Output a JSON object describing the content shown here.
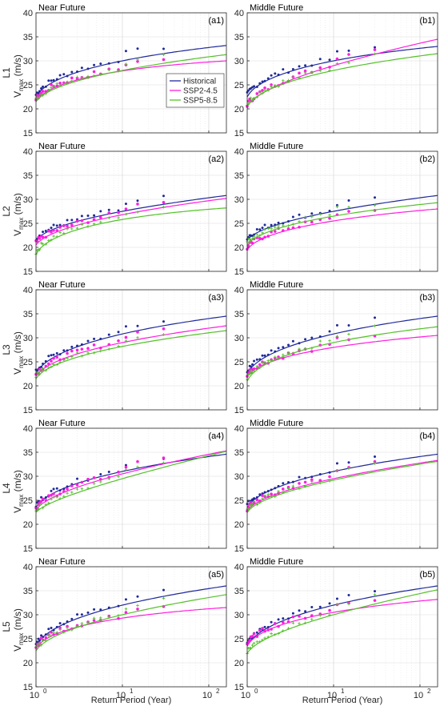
{
  "colors": {
    "historical": "#1f2a9a",
    "ssp245": "#ff1ee0",
    "ssp585": "#54c12a"
  },
  "xlabel": "Return Period (Year)",
  "ylabel_main": "V",
  "ylabel_sub": "max",
  "ylabel_unit": "(m/s)",
  "xtick_labels": {
    "1": "10",
    "10": "10",
    "100": "10"
  },
  "xtick_exponents": {
    "1": "0",
    "10": "1",
    "100": "2"
  },
  "legend": [
    {
      "key": "historical",
      "label": "Historical"
    },
    {
      "key": "ssp245",
      "label": "SSP2-4.5"
    },
    {
      "key": "ssp585",
      "label": "SSP5-8.5"
    }
  ],
  "chart_data": [
    {
      "type": "line",
      "row": "L1",
      "title": "Near Future",
      "tag": "(a1)",
      "xlim": [
        1,
        160
      ],
      "ylim": [
        15,
        40
      ],
      "xscale": "log",
      "grid": true,
      "legend": "inside-right",
      "series": [
        {
          "name": "Historical",
          "values": [
            [
              1,
              22.5
            ],
            [
              10,
              30
            ],
            [
              160,
              33.2
            ]
          ]
        },
        {
          "name": "SSP2-4.5",
          "values": [
            [
              1,
              21.5
            ],
            [
              10,
              27.9
            ],
            [
              160,
              30.0
            ]
          ]
        },
        {
          "name": "SSP5-8.5",
          "values": [
            [
              1,
              21.5
            ],
            [
              10,
              28.0
            ],
            [
              160,
              31.3
            ]
          ]
        }
      ]
    },
    {
      "type": "line",
      "row": "L1",
      "title": "Middle Future",
      "tag": "(b1)",
      "xlim": [
        1,
        160
      ],
      "ylim": [
        15,
        40
      ],
      "xscale": "log",
      "grid": true,
      "series": [
        {
          "name": "Historical",
          "values": [
            [
              1,
              22.5
            ],
            [
              10,
              30.0
            ],
            [
              160,
              33.0
            ]
          ]
        },
        {
          "name": "SSP2-4.5",
          "values": [
            [
              1,
              20.5
            ],
            [
              10,
              29.0
            ],
            [
              160,
              34.5
            ]
          ]
        },
        {
          "name": "SSP5-8.5",
          "values": [
            [
              1,
              20.5
            ],
            [
              10,
              28.0
            ],
            [
              160,
              31.5
            ]
          ]
        }
      ]
    },
    {
      "type": "line",
      "row": "L2",
      "title": "Near Future",
      "tag": "(a2)",
      "xlim": [
        1,
        160
      ],
      "ylim": [
        15,
        40
      ],
      "xscale": "log",
      "grid": true,
      "series": [
        {
          "name": "Historical",
          "values": [
            [
              1,
              21.5
            ],
            [
              10,
              27.5
            ],
            [
              160,
              30.8
            ]
          ]
        },
        {
          "name": "SSP2-4.5",
          "values": [
            [
              1,
              20.5
            ],
            [
              10,
              26.8
            ],
            [
              160,
              30.2
            ]
          ]
        },
        {
          "name": "SSP5-8.5",
          "values": [
            [
              1,
              18.5
            ],
            [
              10,
              25.8
            ],
            [
              160,
              28.2
            ]
          ]
        }
      ]
    },
    {
      "type": "line",
      "row": "L2",
      "title": "Middle Future",
      "tag": "(b2)",
      "xlim": [
        1,
        160
      ],
      "ylim": [
        15,
        40
      ],
      "xscale": "log",
      "grid": true,
      "series": [
        {
          "name": "Historical",
          "values": [
            [
              1,
              21.5
            ],
            [
              10,
              27.5
            ],
            [
              160,
              30.8
            ]
          ]
        },
        {
          "name": "SSP2-4.5",
          "values": [
            [
              1,
              19.5
            ],
            [
              10,
              25.5
            ],
            [
              160,
              28.0
            ]
          ]
        },
        {
          "name": "SSP5-8.5",
          "values": [
            [
              1,
              20.5
            ],
            [
              10,
              26.5
            ],
            [
              160,
              29.3
            ]
          ]
        }
      ]
    },
    {
      "type": "line",
      "row": "L3",
      "title": "Near Future",
      "tag": "(a3)",
      "xlim": [
        1,
        160
      ],
      "ylim": [
        15,
        40
      ],
      "xscale": "log",
      "grid": true,
      "series": [
        {
          "name": "Historical",
          "values": [
            [
              1,
              22.5
            ],
            [
              10,
              30.8
            ],
            [
              160,
              34.5
            ]
          ]
        },
        {
          "name": "SSP2-4.5",
          "values": [
            [
              1,
              22.0
            ],
            [
              10,
              29.0
            ],
            [
              160,
              32.5
            ]
          ]
        },
        {
          "name": "SSP5-8.5",
          "values": [
            [
              1,
              21.5
            ],
            [
              10,
              28.2
            ],
            [
              160,
              31.5
            ]
          ]
        }
      ]
    },
    {
      "type": "line",
      "row": "L3",
      "title": "Middle Future",
      "tag": "(b3)",
      "xlim": [
        1,
        160
      ],
      "ylim": [
        15,
        40
      ],
      "xscale": "log",
      "grid": true,
      "series": [
        {
          "name": "Historical",
          "values": [
            [
              1,
              22.5
            ],
            [
              10,
              30.8
            ],
            [
              160,
              34.5
            ]
          ]
        },
        {
          "name": "SSP2-4.5",
          "values": [
            [
              1,
              22.0
            ],
            [
              10,
              28.0
            ],
            [
              160,
              30.5
            ]
          ]
        },
        {
          "name": "SSP5-8.5",
          "values": [
            [
              1,
              21.0
            ],
            [
              10,
              29.0
            ],
            [
              160,
              32.3
            ]
          ]
        }
      ]
    },
    {
      "type": "line",
      "row": "L4",
      "title": "Near Future",
      "tag": "(a4)",
      "xlim": [
        1,
        160
      ],
      "ylim": [
        15,
        40
      ],
      "xscale": "log",
      "grid": true,
      "series": [
        {
          "name": "Historical",
          "values": [
            [
              1,
              23.5
            ],
            [
              10,
              31.0
            ],
            [
              160,
              34.6
            ]
          ]
        },
        {
          "name": "SSP2-4.5",
          "values": [
            [
              1,
              23.0
            ],
            [
              10,
              30.5
            ],
            [
              160,
              35.3
            ]
          ]
        },
        {
          "name": "SSP5-8.5",
          "values": [
            [
              1,
              22.5
            ],
            [
              10,
              29.5
            ],
            [
              160,
              35.2
            ]
          ]
        }
      ]
    },
    {
      "type": "line",
      "row": "L4",
      "title": "Middle Future",
      "tag": "(b4)",
      "xlim": [
        1,
        160
      ],
      "ylim": [
        15,
        40
      ],
      "xscale": "log",
      "grid": true,
      "series": [
        {
          "name": "Historical",
          "values": [
            [
              1,
              23.5
            ],
            [
              10,
              31.0
            ],
            [
              160,
              34.6
            ]
          ]
        },
        {
          "name": "SSP2-4.5",
          "values": [
            [
              1,
              22.8
            ],
            [
              10,
              29.5
            ],
            [
              160,
              33.3
            ]
          ]
        },
        {
          "name": "SSP5-8.5",
          "values": [
            [
              1,
              22.5
            ],
            [
              10,
              29.2
            ],
            [
              160,
              33.1
            ]
          ]
        }
      ]
    },
    {
      "type": "line",
      "row": "L5",
      "title": "Near Future",
      "tag": "(a5)",
      "xlim": [
        1,
        160
      ],
      "ylim": [
        15,
        40
      ],
      "xscale": "log",
      "grid": true,
      "series": [
        {
          "name": "Historical",
          "values": [
            [
              1,
              23.5
            ],
            [
              10,
              32.0
            ],
            [
              160,
              36.0
            ]
          ]
        },
        {
          "name": "SSP2-4.5",
          "values": [
            [
              1,
              23.0
            ],
            [
              10,
              29.3
            ],
            [
              160,
              31.5
            ]
          ]
        },
        {
          "name": "SSP5-8.5",
          "values": [
            [
              1,
              22.5
            ],
            [
              10,
              30.0
            ],
            [
              160,
              34.2
            ]
          ]
        }
      ]
    },
    {
      "type": "line",
      "row": "L5",
      "title": "Middle Future",
      "tag": "(b5)",
      "xlim": [
        1,
        160
      ],
      "ylim": [
        15,
        40
      ],
      "xscale": "log",
      "grid": true,
      "series": [
        {
          "name": "Historical",
          "values": [
            [
              1,
              23.5
            ],
            [
              10,
              32.0
            ],
            [
              160,
              36.0
            ]
          ]
        },
        {
          "name": "SSP2-4.5",
          "values": [
            [
              1,
              23.5
            ],
            [
              10,
              30.5
            ],
            [
              160,
              33.2
            ]
          ]
        },
        {
          "name": "SSP5-8.5",
          "values": [
            [
              1,
              22.0
            ],
            [
              10,
              30.0
            ],
            [
              160,
              35.2
            ]
          ]
        }
      ]
    }
  ]
}
